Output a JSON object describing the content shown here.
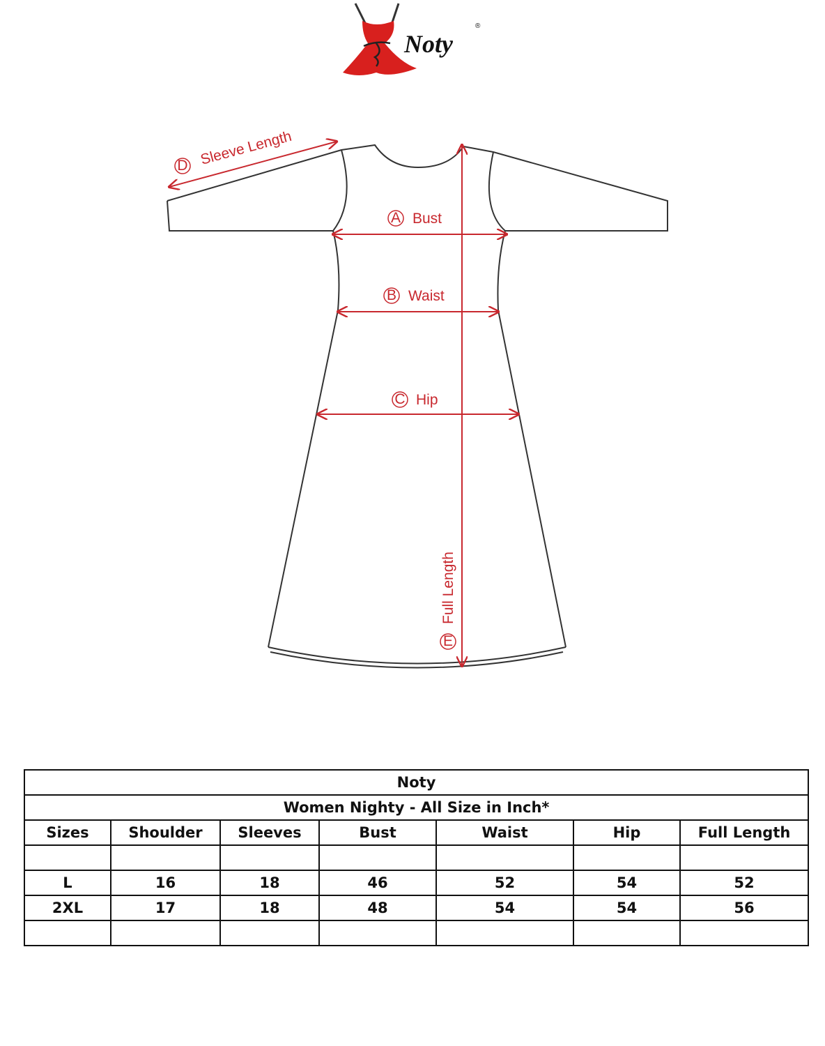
{
  "logo": {
    "text": "Noty",
    "registered": "®",
    "accent_color": "#d8201e"
  },
  "diagram": {
    "labels": {
      "sleeve": {
        "letter": "D",
        "text": "Sleeve  Length"
      },
      "bust": {
        "letter": "A",
        "text": "Bust"
      },
      "waist": {
        "letter": "B",
        "text": "Waist"
      },
      "hip": {
        "letter": "C",
        "text": "Hip"
      },
      "length": {
        "letter": "E",
        "text": "Full  Length"
      }
    },
    "measure_color": "#c8282e"
  },
  "table": {
    "title": "Noty",
    "subtitle": "Women Nighty - All Size in Inch*",
    "headers": [
      "Sizes",
      "Shoulder",
      "Sleeves",
      "Bust",
      "Waist",
      "Hip",
      "Full Length"
    ],
    "rows": [
      [
        "",
        "",
        "",
        "",
        "",
        "",
        ""
      ],
      [
        "L",
        "16",
        "18",
        "46",
        "52",
        "54",
        "52"
      ],
      [
        "2XL",
        "17",
        "18",
        "48",
        "54",
        "54",
        "56"
      ],
      [
        "",
        "",
        "",
        "",
        "",
        "",
        ""
      ]
    ]
  }
}
